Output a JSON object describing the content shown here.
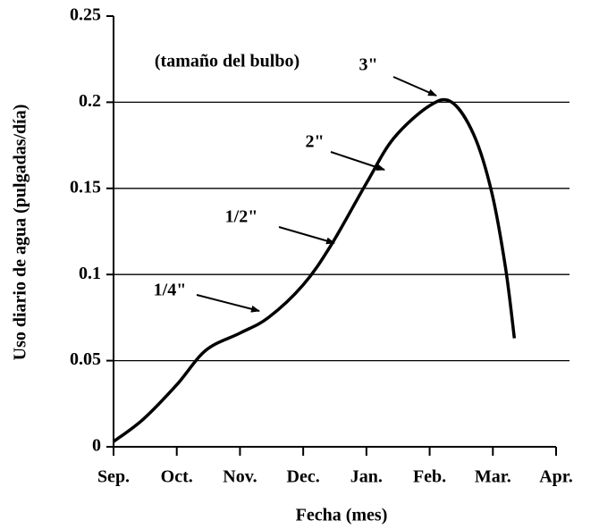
{
  "chart_data": {
    "type": "line",
    "x_label": "Fecha (mes)",
    "y_label": "Uso diario de agua (pulgadas/día)",
    "x": [
      0,
      0.47,
      1.0,
      1.46,
      2.0,
      2.45,
      3.0,
      3.44,
      4.0,
      4.43,
      5.0,
      5.35,
      5.7,
      5.98,
      6.2,
      6.34
    ],
    "values": [
      0.003,
      0.016,
      0.036,
      0.056,
      0.066,
      0.075,
      0.094,
      0.117,
      0.153,
      0.179,
      0.198,
      0.2,
      0.181,
      0.148,
      0.104,
      0.063
    ],
    "color": "#000000",
    "xlim": [
      0,
      7
    ],
    "xticks": [
      {
        "value": 0,
        "label": "Sep."
      },
      {
        "value": 1,
        "label": "Oct."
      },
      {
        "value": 2,
        "label": "Nov."
      },
      {
        "value": 3,
        "label": "Dec."
      },
      {
        "value": 4,
        "label": "Jan."
      },
      {
        "value": 5,
        "label": "Feb."
      },
      {
        "value": 6,
        "label": "Mar."
      },
      {
        "value": 7,
        "label": "Apr."
      }
    ],
    "ylim": [
      0,
      0.25
    ],
    "yticks": [
      0,
      0.05,
      0.1,
      0.15,
      0.2,
      0.25
    ],
    "grid": true,
    "annotations": [
      "(tamaño del bulbo)",
      "3\"",
      "2\"",
      "1/2\"",
      "1/4\""
    ]
  }
}
